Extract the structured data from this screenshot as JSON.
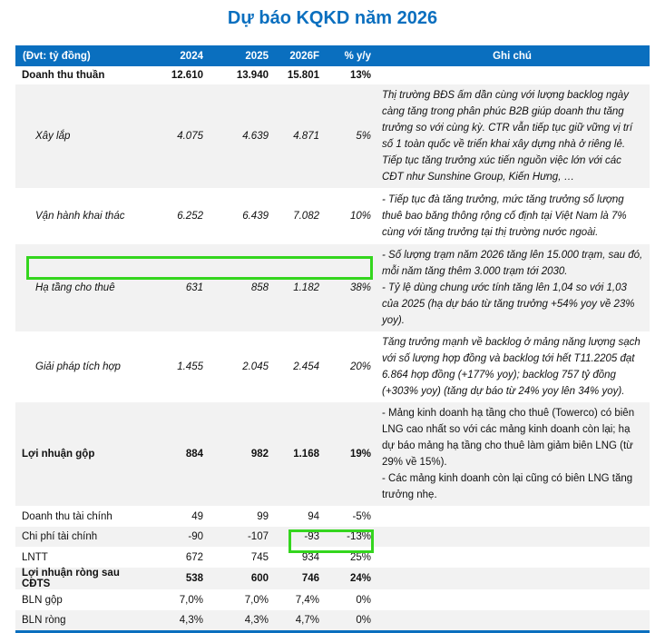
{
  "title": "Dự báo KQKD năm 2026",
  "header": {
    "unit": "(Đvt: tỷ đồng)",
    "y2024": "2024",
    "y2025": "2025",
    "y2026": "2026F",
    "yoy": "% y/y",
    "note": "Ghi chú"
  },
  "rows": [
    {
      "label": "Doanh thu thuần",
      "v2024": "12.610",
      "v2025": "13.940",
      "v2026": "15.801",
      "yoy": "13%"
    },
    {
      "label": "Xây lắp",
      "v2024": "4.075",
      "v2025": "4.639",
      "v2026": "4.871",
      "yoy": "5%",
      "note": "Thị trường BĐS ấm dần cùng với lượng backlog ngày càng tăng trong phân phúc B2B giúp doanh thu tăng trưởng so với cùng kỳ. CTR vẫn tiếp tục giữ vững vị trí số 1 toàn quốc về triển khai xây dựng nhà ở riêng lẻ. Tiếp tục tăng trưởng xúc tiến nguồn việc lớn với các CĐT như Sunshine Group, Kiến Hưng, …"
    },
    {
      "label": "Vận hành khai thác",
      "v2024": "6.252",
      "v2025": "6.439",
      "v2026": "7.082",
      "yoy": "10%",
      "note": "- Tiếp tục đà tăng trưởng, mức tăng trưởng số lượng thuê bao băng thông rộng cố định tại Việt Nam là 7% cùng với tăng trưởng tại thị trường nước ngoài."
    },
    {
      "label": "Hạ tầng cho thuê",
      "v2024": "631",
      "v2025": "858",
      "v2026": "1.182",
      "yoy": "38%",
      "note1": "- Số lượng trạm năm 2026 tăng lên 15.000 trạm, sau đó, mỗi năm tăng thêm 3.000 trạm tới 2030.",
      "note2": "- Tỷ lệ dùng chung ước tính tăng lên 1,04 so với 1,03 của 2025 (hạ dự báo từ tăng trưởng +54% yoy về 23% yoy)."
    },
    {
      "label": "Giải pháp tích hợp",
      "v2024": "1.455",
      "v2025": "2.045",
      "v2026": "2.454",
      "yoy": "20%",
      "note": "Tăng trưởng mạnh về backlog ở mảng năng lượng sạch với số lượng hợp đồng và backlog tới hết T11.2205 đạt 6.864 hợp đồng (+177% yoy); backlog 757 tỷ đồng (+303% yoy) (tăng dự báo từ 24% yoy lên 34% yoy)."
    },
    {
      "label": "Lợi nhuận gộp",
      "v2024": "884",
      "v2025": "982",
      "v2026": "1.168",
      "yoy": "19%",
      "note1": "- Mảng kinh doanh hạ tầng cho thuê (Towerco) có biên LNG cao nhất so với các mảng kinh doanh còn lại; hạ dự báo mảng hạ tầng cho thuê làm giảm biên LNG (từ 29% về 15%).",
      "note2": "- Các mảng kinh doanh còn lại cũng có biên LNG tăng trưởng nhẹ."
    },
    {
      "label": "Doanh thu tài chính",
      "v2024": "49",
      "v2025": "99",
      "v2026": "94",
      "yoy": "-5%"
    },
    {
      "label": "Chi phí tài chính",
      "v2024": "-90",
      "v2025": "-107",
      "v2026": "-93",
      "yoy": "-13%"
    },
    {
      "label": "LNTT",
      "v2024": "672",
      "v2025": "745",
      "v2026": "934",
      "yoy": "25%"
    },
    {
      "label": "Lợi nhuận ròng sau CĐTS",
      "v2024": "538",
      "v2025": "600",
      "v2026": "746",
      "yoy": "24%"
    },
    {
      "label": "BLN gộp",
      "v2024": "7,0%",
      "v2025": "7,0%",
      "v2026": "7,4%",
      "yoy": "0%"
    },
    {
      "label": "BLN ròng",
      "v2024": "4,3%",
      "v2025": "4,3%",
      "v2026": "4,7%",
      "yoy": "0%"
    }
  ],
  "colors": {
    "header": "#0a6fbf",
    "highlight": "#34d61e",
    "stripe": "#f2f2f2"
  }
}
